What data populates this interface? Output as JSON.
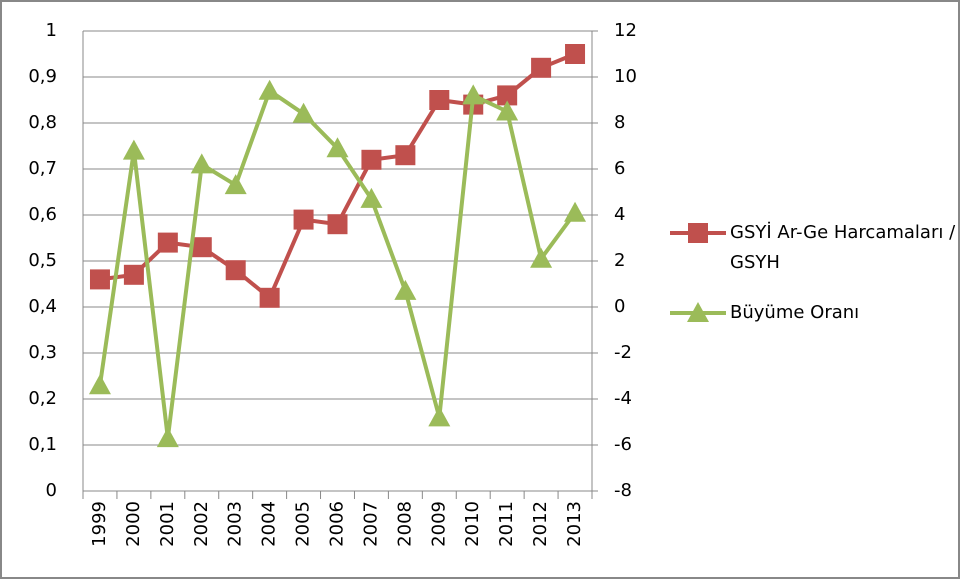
{
  "chart_data": {
    "type": "line",
    "categories": [
      "1999",
      "2000",
      "2001",
      "2002",
      "2003",
      "2004",
      "2005",
      "2006",
      "2007",
      "2008",
      "2009",
      "2010",
      "2011",
      "2012",
      "2013"
    ],
    "series": [
      {
        "name": "GSYİ Ar-Ge Harcamaları / GSYH",
        "color": "#c0504d",
        "marker": "square",
        "values": [
          0.46,
          0.47,
          0.54,
          0.53,
          0.48,
          0.42,
          0.59,
          0.58,
          0.72,
          0.73,
          0.85,
          0.84,
          0.86,
          0.92,
          0.95
        ]
      },
      {
        "name": "Büyüme Oranı",
        "color": "#9bbb59",
        "marker": "triangle",
        "axis": "y2",
        "values": [
          -3.4,
          6.8,
          -5.7,
          6.2,
          5.3,
          9.4,
          8.4,
          6.9,
          4.7,
          0.7,
          -4.8,
          9.2,
          8.5,
          2.1,
          4.1
        ]
      }
    ],
    "ylim": [
      0,
      1
    ],
    "yticks": [
      0,
      {
        "value": 0.1,
        "label": "0,1"
      },
      {
        "value": 0.2,
        "label": "0,2"
      },
      {
        "value": 0.3,
        "label": "0,3"
      },
      {
        "value": 0.4,
        "label": "0,4"
      },
      {
        "value": 0.5,
        "label": "0,5"
      },
      {
        "value": 0.6,
        "label": "0,6"
      },
      {
        "value": 0.7,
        "label": "0,7"
      },
      {
        "value": 0.8,
        "label": "0,8"
      },
      {
        "value": 0.9,
        "label": "0,9"
      },
      1
    ],
    "y2lim": [
      -8,
      12
    ],
    "y2ticks": [
      -8,
      -6,
      -4,
      -2,
      0,
      2,
      4,
      6,
      8,
      10,
      12
    ],
    "grid": true,
    "legend": "right"
  }
}
